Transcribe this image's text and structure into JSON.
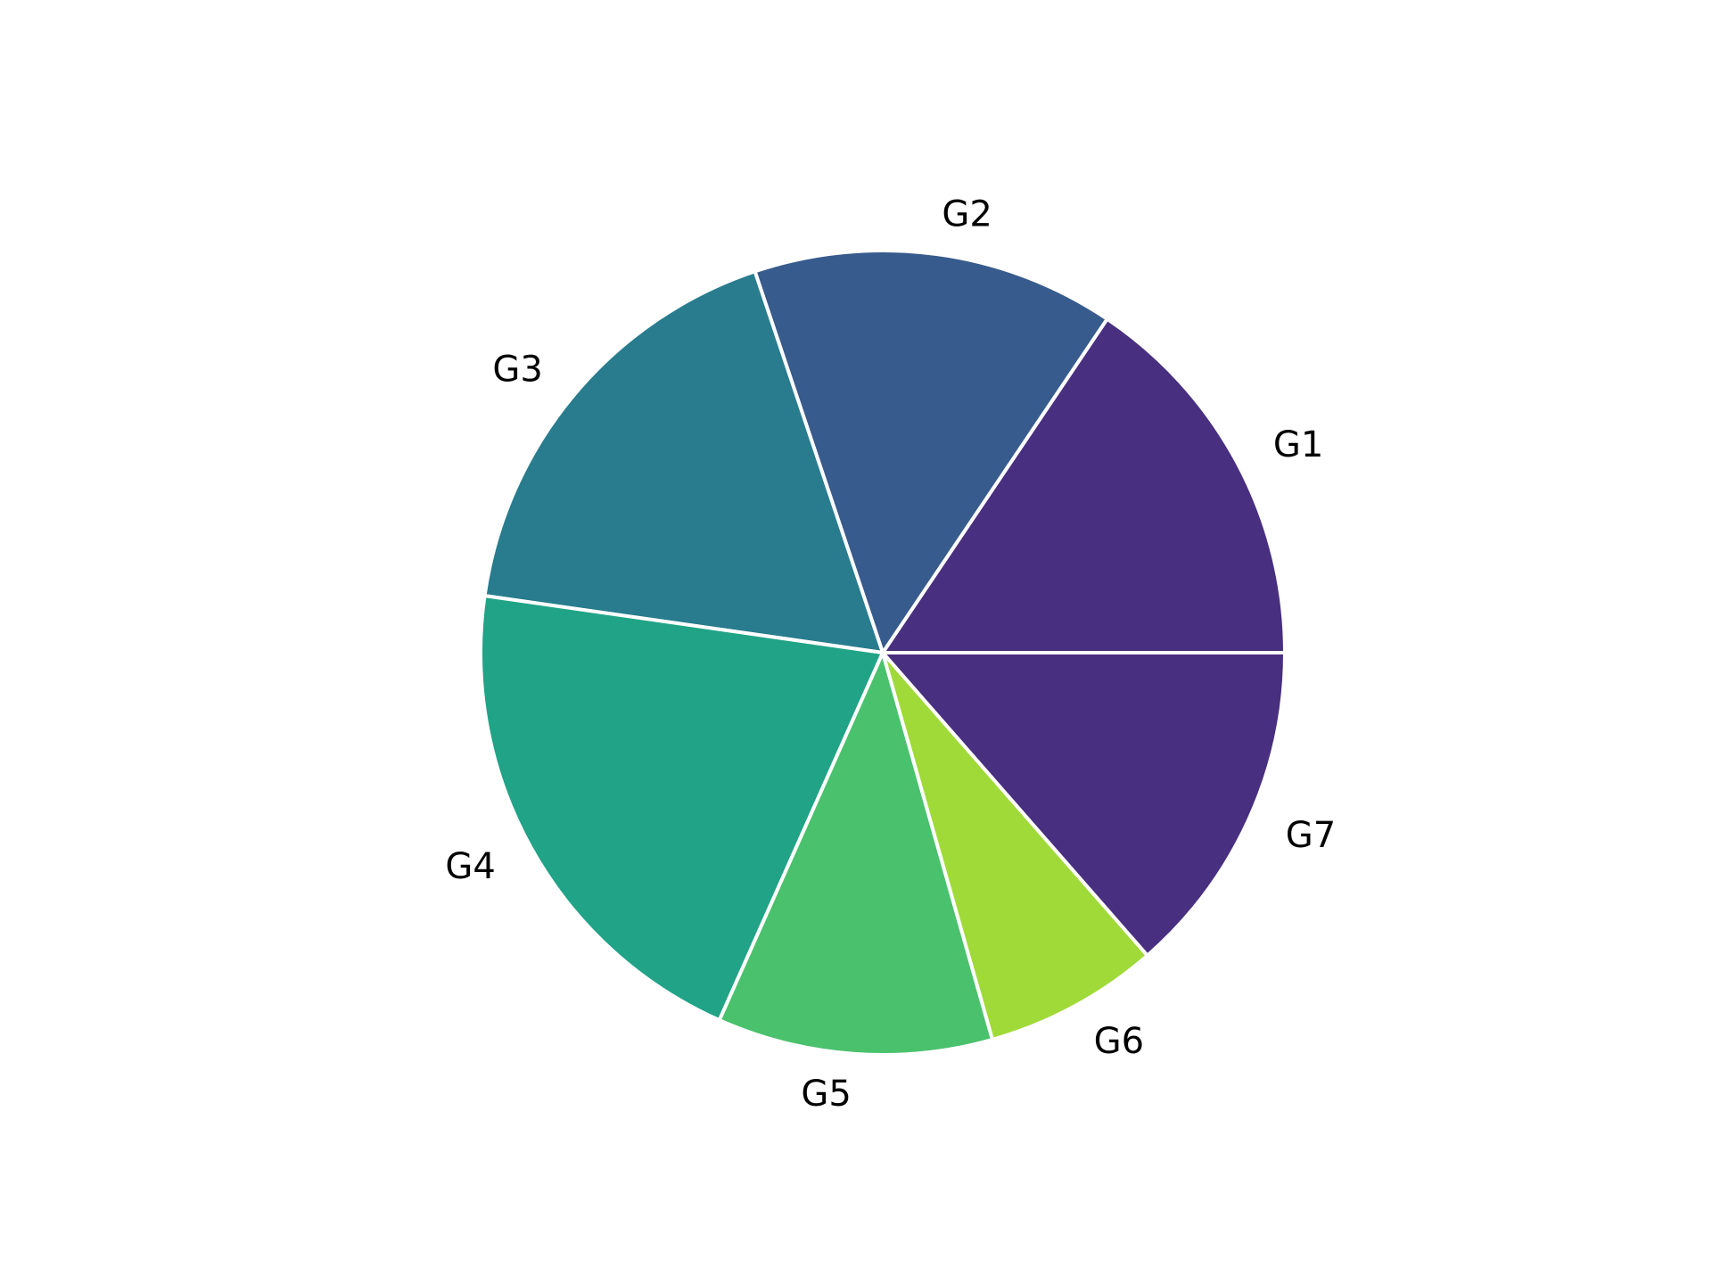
{
  "chart_data": {
    "type": "pie",
    "title": "",
    "categories": [
      "G1",
      "G2",
      "G3",
      "G4",
      "G5",
      "G6",
      "G7"
    ],
    "values": [
      15.5,
      14.5,
      17.5,
      20.5,
      11,
      7,
      13.5
    ],
    "colors": [
      "#482f7f",
      "#375b8c",
      "#287c8e",
      "#20a386",
      "#4ac16d",
      "#a0da39",
      "#482f7f"
    ],
    "start_angle_deg": 0,
    "direction": "counterclockwise",
    "legend": "none"
  }
}
